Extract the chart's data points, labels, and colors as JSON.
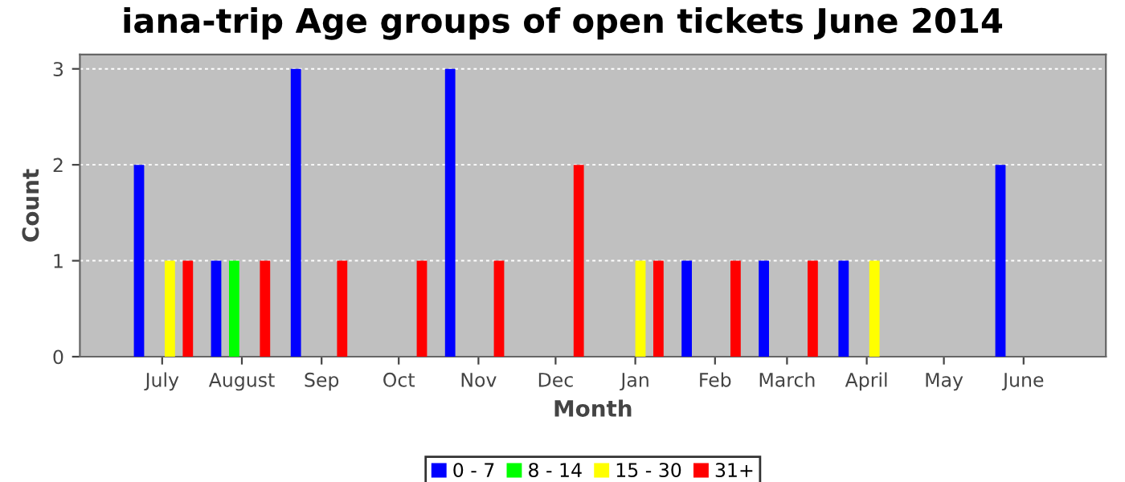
{
  "chart_data": {
    "type": "bar",
    "title": "iana-trip Age groups of open tickets June 2014",
    "xlabel": "Month",
    "ylabel": "Count",
    "series": [
      {
        "name": "0 - 7",
        "color": "#0000ff",
        "x": [
          "2013-06-22",
          "2013-07-22",
          "2013-08-22",
          "2013-10-21",
          "2014-01-21",
          "2014-02-20",
          "2014-03-23",
          "2014-05-23"
        ],
        "values": [
          2,
          1,
          3,
          3,
          1,
          1,
          1,
          2
        ]
      },
      {
        "name": "8 - 14",
        "color": "#00ff00",
        "x": [
          "2013-07-29"
        ],
        "values": [
          1
        ]
      },
      {
        "name": "15 - 30",
        "color": "#ffff00",
        "x": [
          "2013-07-04",
          "2014-01-03",
          "2014-04-04"
        ],
        "values": [
          1,
          1,
          1
        ]
      },
      {
        "name": "31+",
        "color": "#ff0000",
        "x": [
          "2013-07-11",
          "2013-08-10",
          "2013-09-09",
          "2013-10-10",
          "2013-11-09",
          "2013-12-10",
          "2014-01-10",
          "2014-02-09",
          "2014-03-11"
        ],
        "values": [
          1,
          1,
          1,
          1,
          1,
          2,
          1,
          1,
          1
        ]
      }
    ],
    "xlim": [
      "2013-05-30",
      "2014-07-03"
    ],
    "xticks": [
      {
        "value": "2013-07-01",
        "label": "July"
      },
      {
        "value": "2013-08-01",
        "label": "August"
      },
      {
        "value": "2013-09-01",
        "label": "Sep"
      },
      {
        "value": "2013-10-01",
        "label": "Oct"
      },
      {
        "value": "2013-11-01",
        "label": "Nov"
      },
      {
        "value": "2013-12-01",
        "label": "Dec"
      },
      {
        "value": "2014-01-01",
        "label": "Jan"
      },
      {
        "value": "2014-02-01",
        "label": "Feb"
      },
      {
        "value": "2014-03-01",
        "label": "March"
      },
      {
        "value": "2014-04-01",
        "label": "April"
      },
      {
        "value": "2014-05-01",
        "label": "May"
      },
      {
        "value": "2014-06-01",
        "label": "June"
      }
    ],
    "ylim": [
      0,
      3.15
    ],
    "yticks": [
      0,
      1,
      2,
      3
    ],
    "grid": "y",
    "legend": "bottom"
  }
}
